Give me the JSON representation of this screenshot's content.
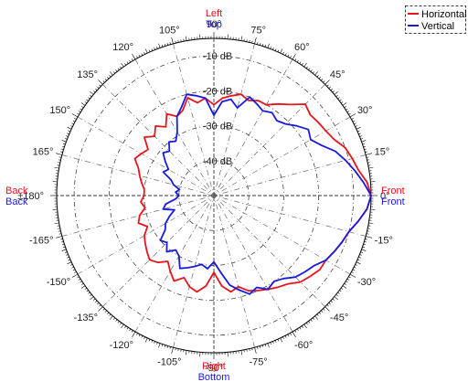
{
  "chart_data": {
    "type": "polar-line",
    "angle_unit": "degrees",
    "radial_unit": "dB",
    "radial_range_db": [
      -50,
      -5
    ],
    "rings": [
      {
        "value": -10,
        "label": "-10 dB"
      },
      {
        "value": -20,
        "label": "-20 dB"
      },
      {
        "value": -30,
        "label": "-30 dB"
      },
      {
        "value": -40,
        "label": "-40 dB"
      }
    ],
    "angle_ticks": [
      {
        "angle": 0,
        "label": "0°"
      },
      {
        "angle": 15,
        "label": "15°"
      },
      {
        "angle": 30,
        "label": "30°"
      },
      {
        "angle": 45,
        "label": "45°"
      },
      {
        "angle": 60,
        "label": "60°"
      },
      {
        "angle": 75,
        "label": "75°"
      },
      {
        "angle": 90,
        "label": "90°"
      },
      {
        "angle": 105,
        "label": "105°"
      },
      {
        "angle": 120,
        "label": "120°"
      },
      {
        "angle": 135,
        "label": "135°"
      },
      {
        "angle": 150,
        "label": "150°"
      },
      {
        "angle": 165,
        "label": "165°"
      },
      {
        "angle": 180,
        "label": "±180°"
      },
      {
        "angle": -165,
        "label": "-165°"
      },
      {
        "angle": -150,
        "label": "-150°"
      },
      {
        "angle": -135,
        "label": "-135°"
      },
      {
        "angle": -120,
        "label": "-120°"
      },
      {
        "angle": -105,
        "label": "-105°"
      },
      {
        "angle": -90,
        "label": "-90°"
      },
      {
        "angle": -75,
        "label": "-75°"
      },
      {
        "angle": -60,
        "label": "-60°"
      },
      {
        "angle": -45,
        "label": "-45°"
      },
      {
        "angle": -30,
        "label": "-30°"
      },
      {
        "angle": -15,
        "label": "-15°"
      }
    ],
    "direction_labels": {
      "top": [
        "Left",
        "Top"
      ],
      "bottom": [
        "Right",
        "Bottom"
      ],
      "left": [
        "Back",
        "Back"
      ],
      "right": [
        "Front",
        "Front"
      ]
    },
    "legend": {
      "placement": "top-right"
    },
    "series": [
      {
        "name": "Horizontal",
        "color": "#e8141b",
        "angles": [
          0,
          5,
          10,
          15,
          20,
          25,
          30,
          35,
          40,
          45,
          50,
          55,
          60,
          65,
          70,
          75,
          80,
          85,
          90,
          95,
          100,
          105,
          110,
          115,
          120,
          125,
          130,
          135,
          140,
          145,
          150,
          155,
          160,
          165,
          170,
          175,
          180,
          185,
          190,
          195,
          200,
          205,
          210,
          215,
          220,
          225,
          230,
          235,
          240,
          245,
          250,
          255,
          260,
          265,
          270,
          275,
          280,
          285,
          290,
          295,
          300,
          305,
          310,
          315,
          320,
          325,
          330,
          335,
          340,
          345,
          350,
          355
        ],
        "values": [
          -5,
          -6,
          -8,
          -9,
          -10,
          -12,
          -13,
          -13.5,
          -14,
          -13,
          -16,
          -18,
          -20,
          -20,
          -21,
          -20,
          -21,
          -22,
          -24,
          -22,
          -23,
          -21,
          -24,
          -25,
          -23,
          -26,
          -24,
          -26,
          -24,
          -27,
          -26,
          -25,
          -27,
          -28,
          -29,
          -30,
          -30,
          -29,
          -30,
          -28,
          -27,
          -29,
          -27,
          -26,
          -25,
          -24,
          -25,
          -27,
          -25,
          -23,
          -25,
          -23,
          -22,
          -24,
          -28,
          -24,
          -22,
          -23,
          -21,
          -20,
          -19,
          -18,
          -17,
          -15,
          -14,
          -13,
          -13,
          -12,
          -11,
          -10,
          -8,
          -6
        ]
      },
      {
        "name": "Vertical",
        "color": "#1a1adc",
        "angles": [
          0,
          5,
          10,
          15,
          20,
          25,
          30,
          35,
          40,
          45,
          50,
          55,
          60,
          65,
          70,
          75,
          80,
          85,
          90,
          95,
          100,
          105,
          110,
          115,
          120,
          125,
          130,
          135,
          140,
          145,
          150,
          155,
          160,
          165,
          170,
          175,
          180,
          185,
          190,
          195,
          200,
          205,
          210,
          215,
          220,
          225,
          230,
          235,
          240,
          245,
          250,
          255,
          260,
          265,
          270,
          275,
          280,
          285,
          290,
          295,
          300,
          305,
          310,
          315,
          320,
          325,
          330,
          335,
          340,
          345,
          350,
          355
        ],
        "values": [
          -5,
          -7,
          -9,
          -11,
          -13,
          -16,
          -18,
          -17,
          -19,
          -21,
          -22,
          -21,
          -22,
          -21,
          -20,
          -24,
          -22,
          -23,
          -27,
          -22,
          -21,
          -20,
          -23,
          -25,
          -29,
          -31,
          -30,
          -32,
          -31,
          -33,
          -35,
          -34,
          -37,
          -38,
          -40,
          -39,
          -40,
          -39,
          -36,
          -35,
          -38,
          -36,
          -34,
          -33,
          -30,
          -31,
          -29,
          -31,
          -30,
          -27,
          -28,
          -29,
          -30,
          -29,
          -31,
          -28,
          -24,
          -22,
          -20,
          -21,
          -19,
          -20,
          -19,
          -17,
          -16,
          -15,
          -13,
          -12,
          -11,
          -10,
          -8,
          -6
        ]
      }
    ]
  }
}
